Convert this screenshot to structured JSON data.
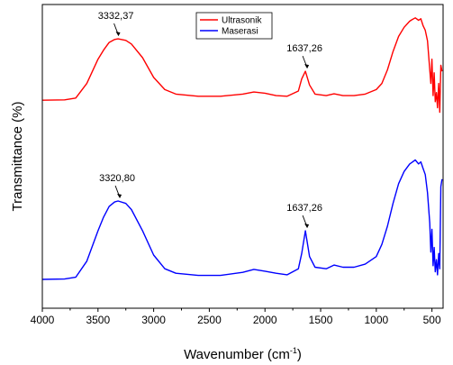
{
  "chart_data": {
    "type": "line",
    "xlabel": "Wavenumber (cm",
    "xlabel_sup": "-1",
    "xlabel_end": ")",
    "ylabel": "Transmittance (%)",
    "xlim": [
      4000,
      400
    ],
    "x_reversed": true,
    "ylim": [
      0,
      100
    ],
    "y_ticks_shown": false,
    "x_ticks": [
      4000,
      3500,
      3000,
      2500,
      2000,
      1500,
      1000,
      500
    ],
    "x_tick_labels": [
      "4000",
      "3500",
      "3000",
      "2500",
      "2000",
      "1500",
      "1000",
      "500"
    ],
    "legend_position": "top-center",
    "series": [
      {
        "name": "Ultrasonik",
        "color": "#ff0000",
        "x": [
          4000,
          3800,
          3700,
          3600,
          3500,
          3450,
          3400,
          3350,
          3320,
          3250,
          3200,
          3100,
          3000,
          2900,
          2800,
          2600,
          2400,
          2200,
          2100,
          2000,
          1900,
          1800,
          1700,
          1670,
          1637,
          1600,
          1550,
          1450,
          1380,
          1300,
          1200,
          1100,
          1000,
          950,
          900,
          850,
          800,
          750,
          700,
          680,
          650,
          620,
          600,
          580,
          560,
          540,
          520,
          510,
          500,
          490,
          480,
          470,
          460,
          450,
          440,
          430,
          420,
          410
        ],
        "values": [
          68.5,
          68.6,
          69.2,
          74.0,
          82.0,
          85.0,
          87.5,
          88.5,
          88.7,
          88.2,
          87.0,
          82.5,
          76.0,
          72.0,
          70.5,
          69.8,
          69.8,
          70.5,
          71.2,
          70.8,
          70.0,
          69.8,
          71.5,
          75.5,
          78.0,
          73.5,
          70.5,
          70.0,
          70.6,
          70.0,
          70.0,
          70.5,
          72.0,
          74.0,
          78.5,
          84.5,
          89.5,
          92.5,
          94.5,
          95.0,
          95.6,
          94.8,
          95.3,
          93.0,
          91.5,
          88.0,
          78.5,
          74.0,
          82.0,
          70.0,
          77.5,
          68.0,
          71.0,
          66.0,
          74.0,
          64.5,
          80.0,
          78.0
        ]
      },
      {
        "name": "Maserasi",
        "color": "#0000ff",
        "x": [
          4000,
          3800,
          3700,
          3600,
          3500,
          3450,
          3400,
          3350,
          3320,
          3250,
          3200,
          3100,
          3000,
          2900,
          2800,
          2600,
          2400,
          2200,
          2100,
          2000,
          1900,
          1800,
          1700,
          1670,
          1637,
          1600,
          1550,
          1450,
          1380,
          1300,
          1200,
          1100,
          1000,
          950,
          900,
          850,
          800,
          750,
          700,
          680,
          650,
          620,
          600,
          580,
          560,
          540,
          520,
          510,
          500,
          490,
          480,
          470,
          460,
          450,
          440,
          430,
          420,
          410
        ],
        "values": [
          9.5,
          9.6,
          10.2,
          15.5,
          25.5,
          30.0,
          33.5,
          35.0,
          35.3,
          34.5,
          32.5,
          25.5,
          17.5,
          13.0,
          11.5,
          10.8,
          10.8,
          11.8,
          12.8,
          12.2,
          11.5,
          11.0,
          13.0,
          18.0,
          25.5,
          17.0,
          13.5,
          13.0,
          14.2,
          13.5,
          13.5,
          14.5,
          17.0,
          21.0,
          27.0,
          34.5,
          41.0,
          45.0,
          47.5,
          48.0,
          48.8,
          47.5,
          48.2,
          46.0,
          44.0,
          38.0,
          28.0,
          18.5,
          26.0,
          14.0,
          20.0,
          12.0,
          16.0,
          11.0,
          18.0,
          13.0,
          40.0,
          42.5
        ]
      }
    ],
    "annotations": [
      {
        "text": "3332,37",
        "x": 3332,
        "y": 88.7,
        "series": "Ultrasonik"
      },
      {
        "text": "1637,26",
        "x": 1637,
        "y": 78.0,
        "series": "Ultrasonik"
      },
      {
        "text": "3320,80",
        "x": 3320,
        "y": 35.3,
        "series": "Maserasi"
      },
      {
        "text": "1637,26",
        "x": 1637,
        "y": 25.5,
        "series": "Maserasi"
      }
    ]
  }
}
